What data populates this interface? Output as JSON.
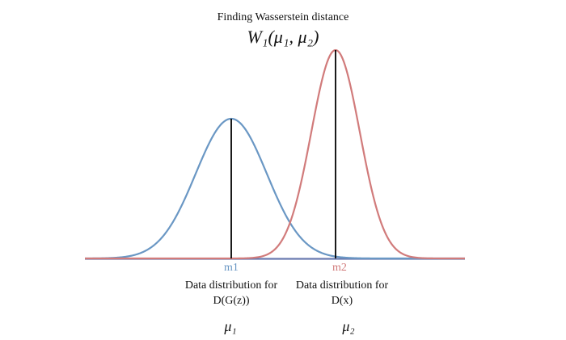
{
  "header": {
    "title": "Finding Wasserstein distance",
    "formula": "W₁(μ₁, μ₂)"
  },
  "distributions": [
    {
      "mean_label": "m1",
      "caption_line1": "Data distribution for",
      "caption_line2": "D(G(z))",
      "symbol": "μ₁",
      "color": "#6a97c4"
    },
    {
      "mean_label": "m2",
      "caption_line1": "Data distribution for",
      "caption_line2": "D(x)",
      "symbol": "μ₂",
      "color": "#d17b7b"
    }
  ],
  "colors": {
    "baseline": "#6a7bb0",
    "mean_line": "#000000"
  }
}
